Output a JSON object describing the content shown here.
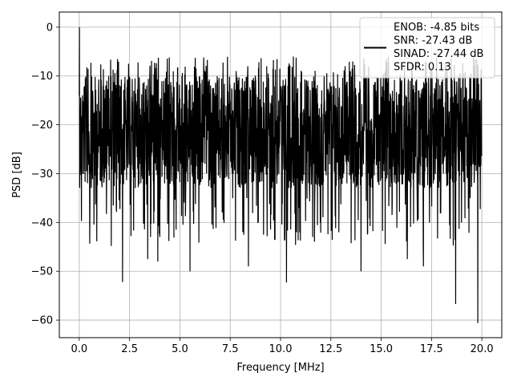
{
  "chart_data": {
    "type": "line",
    "title": "",
    "xlabel": "Frequency [MHz]",
    "ylabel": "PSD [dB]",
    "xlim": [
      -0.99,
      20.99
    ],
    "ylim": [
      -63.6,
      3.1
    ],
    "xticks": [
      0.0,
      2.5,
      5.0,
      7.5,
      10.0,
      12.5,
      15.0,
      17.5,
      20.0
    ],
    "xtick_labels": [
      "0.0",
      "2.5",
      "5.0",
      "7.5",
      "10.0",
      "12.5",
      "15.0",
      "17.5",
      "20.0"
    ],
    "yticks": [
      0,
      -10,
      -20,
      -30,
      -40,
      -50,
      -60
    ],
    "ytick_labels": [
      "0",
      "−10",
      "−20",
      "−30",
      "−40",
      "−50",
      "−60"
    ],
    "grid": true,
    "legend_position": "top-right",
    "legend_lines": [
      "ENOB: -4.85 bits",
      "SNR: -27.43 dB",
      "SINAD: -27.44 dB",
      "SFDR: 0.13"
    ],
    "series": [
      {
        "color": "#000000",
        "x_range": [
          0.0,
          20.0
        ],
        "points_estimated": 2000,
        "envelope": {
          "peak_at_dc": 0.0,
          "upper_typical": -8,
          "lower_typical": -35,
          "floor_spikes": [
            {
              "x": 2.15,
              "y": -52.2
            },
            {
              "x": 3.4,
              "y": -47.5
            },
            {
              "x": 3.9,
              "y": -48.0
            },
            {
              "x": 5.5,
              "y": -50.0
            },
            {
              "x": 8.4,
              "y": -49.0
            },
            {
              "x": 10.3,
              "y": -52.3
            },
            {
              "x": 14.0,
              "y": -50.0
            },
            {
              "x": 16.3,
              "y": -47.5
            },
            {
              "x": 17.1,
              "y": -49.0
            },
            {
              "x": 18.7,
              "y": -56.7
            },
            {
              "x": 19.8,
              "y": -60.6
            }
          ]
        }
      }
    ]
  }
}
